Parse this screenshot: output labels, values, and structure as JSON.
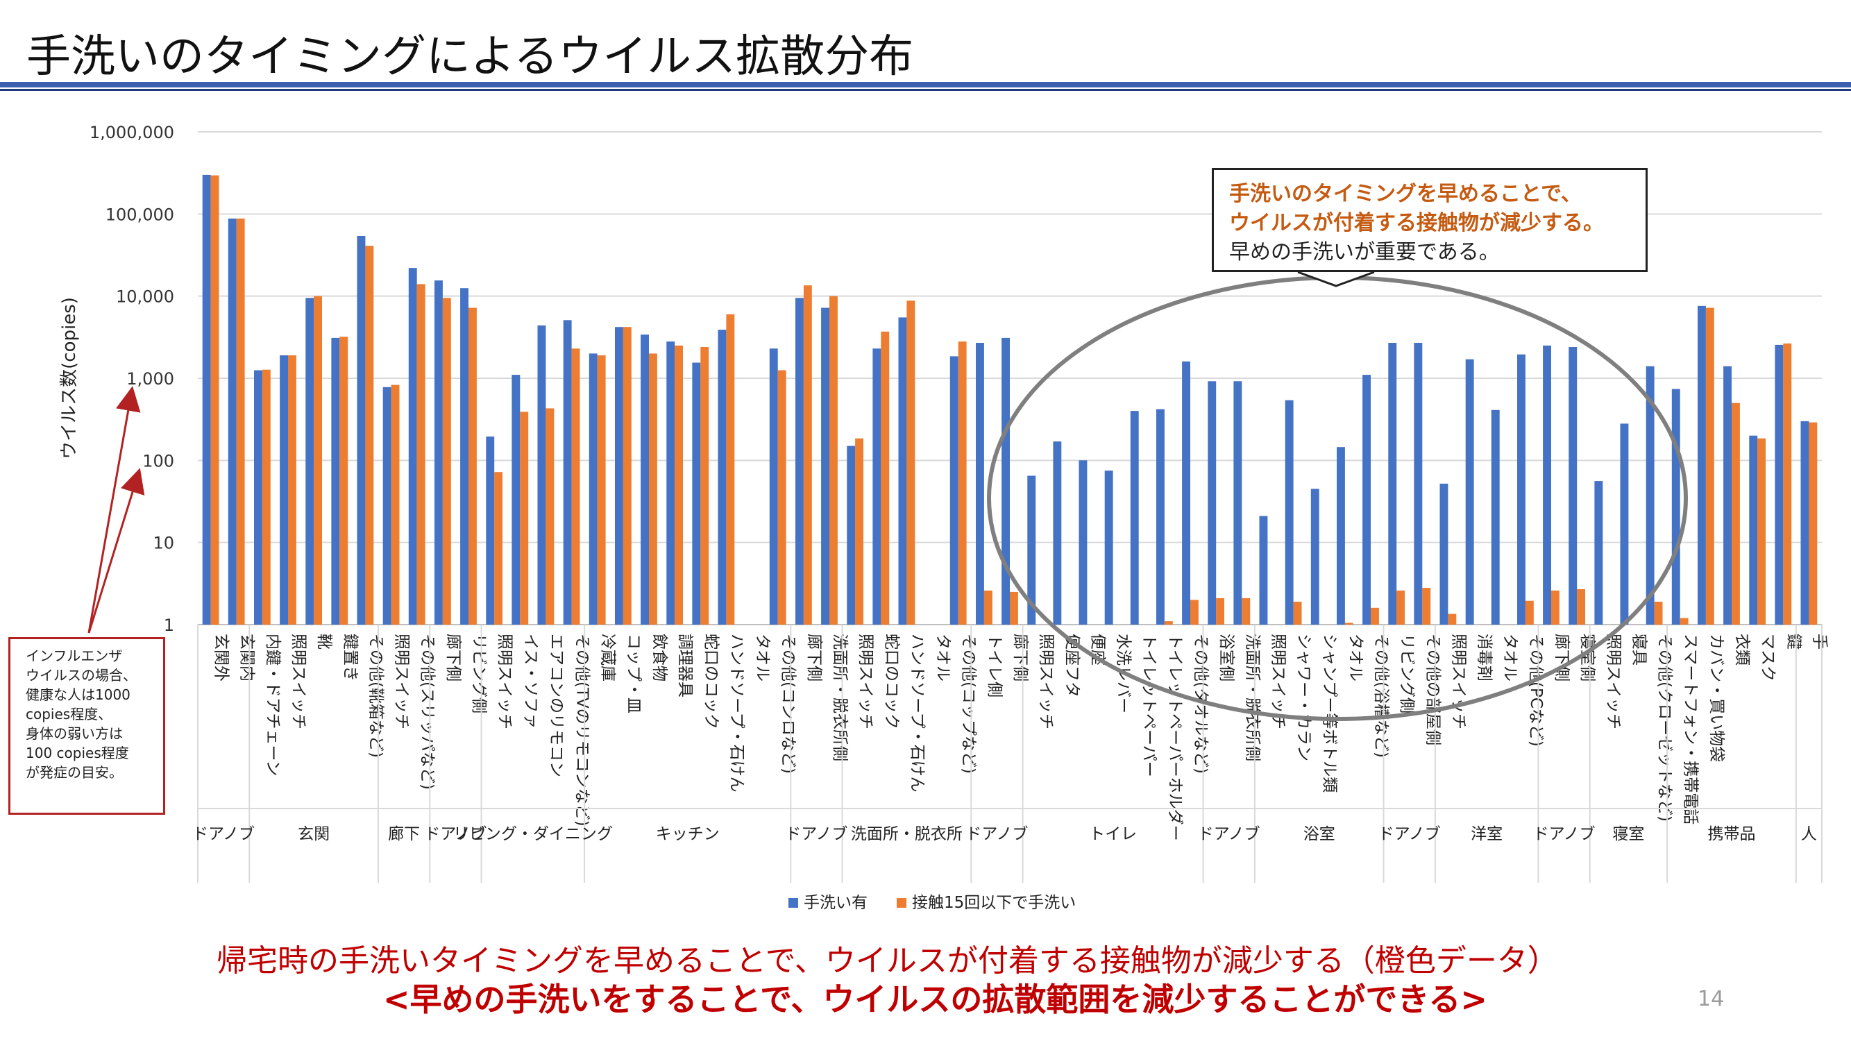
{
  "slide": {
    "title": "手洗いのタイミングによるウイルス拡散分布",
    "page_number": "14"
  },
  "callout": {
    "line1": "手洗いのタイミングを早めることで、",
    "line2": "ウイルスが付着する接触物が減少する。",
    "line3": "早めの手洗いが重要である。"
  },
  "flu_note": {
    "lines": [
      "インフルエンザ",
      "ウイルスの場合、",
      "健康な人は1000",
      "copies程度、",
      "身体の弱い方は",
      "100 copies程度",
      "が発症の目安。"
    ]
  },
  "footer": {
    "line1": "帰宅時の手洗いタイミングを早めることで、ウイルスが付着する接触物が減少する（橙色データ）",
    "line2": "<早めの手洗いをすることで、ウイルスの拡散範囲を減少することができる>"
  },
  "colors": {
    "blue": "#4472c4",
    "orange": "#ed7d31",
    "callout_highlight": "#c55a11",
    "footer_red": "#c00000",
    "title_rule": "#3a5fb0",
    "ellipse": "#7f7f7f"
  },
  "chart_data": {
    "type": "bar",
    "scale": "log",
    "ylabel": "ウイルス数(copies)",
    "ylim": [
      1,
      1000000
    ],
    "yticks": [
      "1",
      "10",
      "100",
      "1,000",
      "10,000",
      "100,000",
      "1,000,000"
    ],
    "grid": true,
    "legend_position": "bottom",
    "series": [
      {
        "name": "手洗い有",
        "color": "#4472c4"
      },
      {
        "name": "接触15回以下で手洗い",
        "color": "#ed7d31"
      }
    ],
    "groups": [
      {
        "name": "ドアノブ",
        "items": [
          {
            "label": "玄関外",
            "values": [
              300000,
              295000
            ]
          },
          {
            "label": "玄関内",
            "values": [
              88000,
              88000
            ]
          }
        ]
      },
      {
        "name": "玄関",
        "items": [
          {
            "label": "内鍵・ドアチェーン",
            "values": [
              1250,
              1270
            ]
          },
          {
            "label": "照明スイッチ",
            "values": [
              1900,
              1900
            ]
          },
          {
            "label": "靴",
            "values": [
              9500,
              10000
            ]
          },
          {
            "label": "鍵置き",
            "values": [
              3100,
              3200
            ]
          },
          {
            "label": "その他(靴箱など)",
            "values": [
              54000,
              41000
            ]
          }
        ]
      },
      {
        "name": "廊下",
        "items": [
          {
            "label": "照明スイッチ",
            "values": [
              780,
              830
            ]
          },
          {
            "label": "その他(スリッパなど)",
            "values": [
              22000,
              14000
            ]
          }
        ]
      },
      {
        "name": "ドアノブ",
        "items": [
          {
            "label": "廊下側",
            "values": [
              15500,
              9500
            ]
          },
          {
            "label": "リビング側",
            "values": [
              12500,
              7200
            ]
          }
        ]
      },
      {
        "name": "リビング・ダイニング",
        "items": [
          {
            "label": "照明スイッチ",
            "values": [
              195,
              72
            ]
          },
          {
            "label": "イス・ソファ",
            "values": [
              1100,
              390
            ]
          },
          {
            "label": "エアコンのリモコン",
            "values": [
              4400,
              430
            ]
          },
          {
            "label": "その他(TVのリモコンなど)",
            "values": [
              5100,
              2300
            ]
          }
        ]
      },
      {
        "name": "キッチン",
        "items": [
          {
            "label": "冷蔵庫",
            "values": [
              2000,
              1900
            ]
          },
          {
            "label": "コップ・皿",
            "values": [
              4200,
              4200
            ]
          },
          {
            "label": "飲食物",
            "values": [
              3400,
              2000
            ]
          },
          {
            "label": "調理器具",
            "values": [
              2800,
              2500
            ]
          },
          {
            "label": "蛇口のコック",
            "values": [
              1550,
              2400
            ]
          },
          {
            "label": "ハンドソープ・石けん",
            "values": [
              3900,
              6000
            ]
          },
          {
            "label": "タオル",
            "values": [
              null,
              null
            ]
          },
          {
            "label": "その他(コンロなど)",
            "values": [
              2300,
              1250
            ]
          }
        ]
      },
      {
        "name": "ドアノブ",
        "items": [
          {
            "label": "廊下側",
            "values": [
              9500,
              13500
            ]
          },
          {
            "label": "洗面所・脱衣所側",
            "values": [
              7200,
              10000
            ]
          }
        ]
      },
      {
        "name": "洗面所・脱衣所",
        "items": [
          {
            "label": "照明スイッチ",
            "values": [
              150,
              185
            ]
          },
          {
            "label": "蛇口のコック",
            "values": [
              2300,
              3700
            ]
          },
          {
            "label": "ハンドソープ・石けん",
            "values": [
              5500,
              8800
            ]
          },
          {
            "label": "タオル",
            "values": [
              null,
              null
            ]
          },
          {
            "label": "その他(コップなど)",
            "values": [
              1850,
              2800
            ]
          }
        ]
      },
      {
        "name": "ドアノブ",
        "items": [
          {
            "label": "トイレ側",
            "values": [
              2700,
              2.6
            ]
          },
          {
            "label": "廊下側",
            "values": [
              3100,
              2.5
            ]
          }
        ]
      },
      {
        "name": "トイレ",
        "items": [
          {
            "label": "照明スイッチ",
            "values": [
              65,
              null
            ]
          },
          {
            "label": "便座フタ",
            "values": [
              170,
              null
            ]
          },
          {
            "label": "便座",
            "values": [
              100,
              null
            ]
          },
          {
            "label": "水洗レバー",
            "values": [
              75,
              null
            ]
          },
          {
            "label": "トイレットペーパー",
            "values": [
              400,
              null
            ]
          },
          {
            "label": "トイレットペーパーホルダー",
            "values": [
              420,
              1.1
            ]
          },
          {
            "label": "その他(タオルなど)",
            "values": [
              1600,
              2.0
            ]
          }
        ]
      },
      {
        "name": "ドアノブ",
        "items": [
          {
            "label": "浴室側",
            "values": [
              920,
              2.1
            ]
          },
          {
            "label": "洗面所・脱衣所側",
            "values": [
              920,
              2.1
            ]
          }
        ]
      },
      {
        "name": "浴室",
        "items": [
          {
            "label": "照明スイッチ",
            "values": [
              21,
              null
            ]
          },
          {
            "label": "シャワー・カラン",
            "values": [
              540,
              1.9
            ]
          },
          {
            "label": "シャンプー等ボトル類",
            "values": [
              45,
              null
            ]
          },
          {
            "label": "タオル",
            "values": [
              145,
              1.05
            ]
          },
          {
            "label": "その他(浴槽など)",
            "values": [
              1100,
              1.6
            ]
          }
        ]
      },
      {
        "name": "ドアノブ",
        "items": [
          {
            "label": "リビング側",
            "values": [
              2700,
              2.6
            ]
          },
          {
            "label": "その他の部屋側",
            "values": [
              2700,
              2.8
            ]
          }
        ]
      },
      {
        "name": "洋室",
        "items": [
          {
            "label": "照明スイッチ",
            "values": [
              52,
              1.35
            ]
          },
          {
            "label": "消毒剤",
            "values": [
              1700,
              null
            ]
          },
          {
            "label": "タオル",
            "values": [
              410,
              null
            ]
          },
          {
            "label": "その他(PCなど)",
            "values": [
              1950,
              1.95
            ]
          }
        ]
      },
      {
        "name": "ドアノブ",
        "items": [
          {
            "label": "廊下側",
            "values": [
              2500,
              2.6
            ]
          },
          {
            "label": "寝室側",
            "values": [
              2400,
              2.7
            ]
          }
        ]
      },
      {
        "name": "寝室",
        "items": [
          {
            "label": "照明スイッチ",
            "values": [
              56,
              null
            ]
          },
          {
            "label": "寝具",
            "values": [
              280,
              null
            ]
          },
          {
            "label": "その他(クローゼットなど)",
            "values": [
              1400,
              1.9
            ]
          }
        ]
      },
      {
        "name": "携帯品",
        "items": [
          {
            "label": "スマートフォン・携帯電話",
            "values": [
              740,
              1.2
            ]
          },
          {
            "label": "カバン・買い物袋",
            "values": [
              7600,
              7200
            ]
          },
          {
            "label": "衣類",
            "values": [
              1400,
              500
            ]
          },
          {
            "label": "マスク",
            "values": [
              200,
              185
            ]
          },
          {
            "label": "鍵",
            "values": [
              2550,
              2650
            ]
          }
        ]
      },
      {
        "name": "人",
        "items": [
          {
            "label": "手",
            "values": [
              300,
              290
            ]
          }
        ]
      }
    ]
  }
}
